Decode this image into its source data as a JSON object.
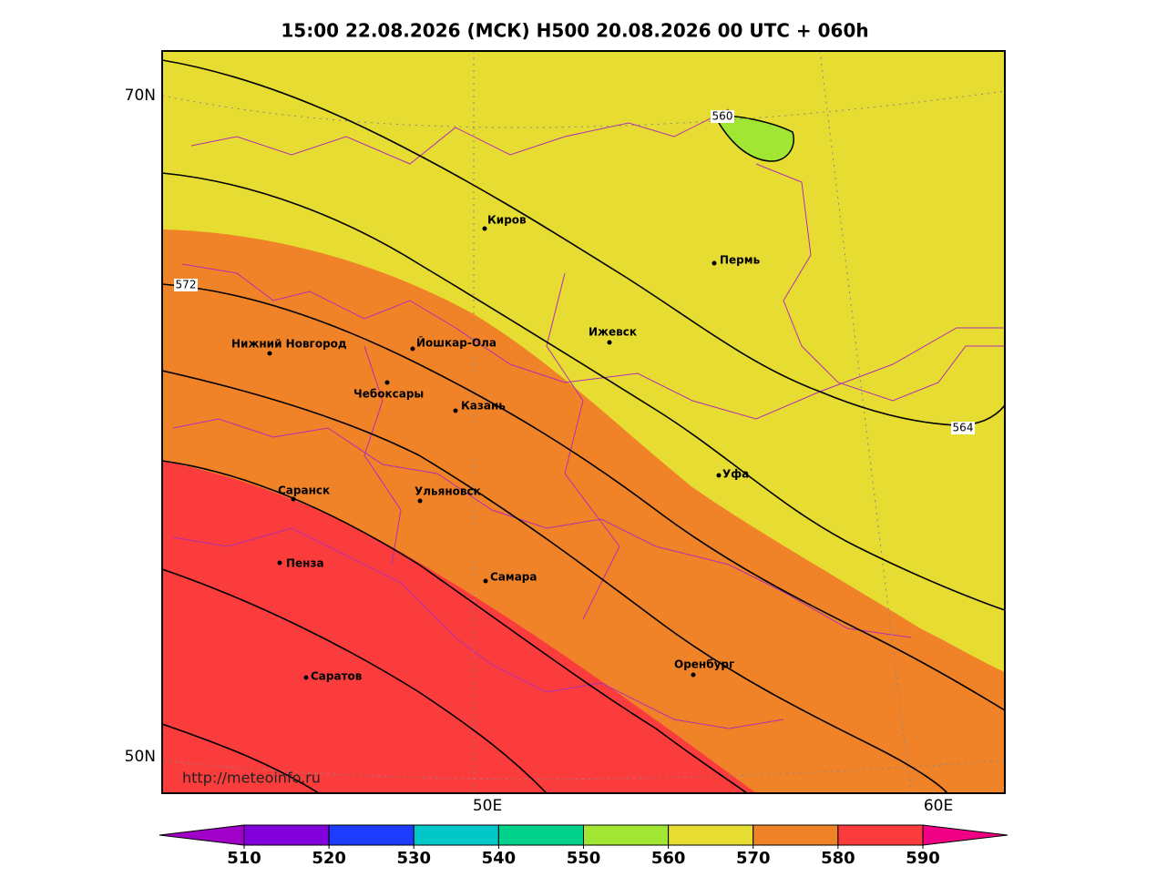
{
  "title": "15:00 22.08.2026 (МСК) H500  20.08.2026 00 UTC + 060h",
  "lat_labels": [
    "70N",
    "50N"
  ],
  "lon_labels": [
    "50E",
    "60E"
  ],
  "cities": [
    "Киров",
    "Пермь",
    "Ижевск",
    "Нижний Новгород",
    "Йошкар-Ола",
    "Чебоксары",
    "Казань",
    "Уфа",
    "Саранск",
    "Ульяновск",
    "Пенза",
    "Самара",
    "Оренбург",
    "Саратов"
  ],
  "contour_labels": [
    560,
    572,
    564
  ],
  "url": "http://meteoinfo.ru",
  "colorbar": {
    "ticks": [
      510,
      520,
      530,
      540,
      550,
      560,
      570,
      580,
      590
    ],
    "colors": [
      "#a000c8",
      "#8200dc",
      "#1e3cff",
      "#00c8c8",
      "#00d28c",
      "#a0e632",
      "#e6dc32",
      "#f08228",
      "#fa3c3c",
      "#f00082"
    ]
  }
}
